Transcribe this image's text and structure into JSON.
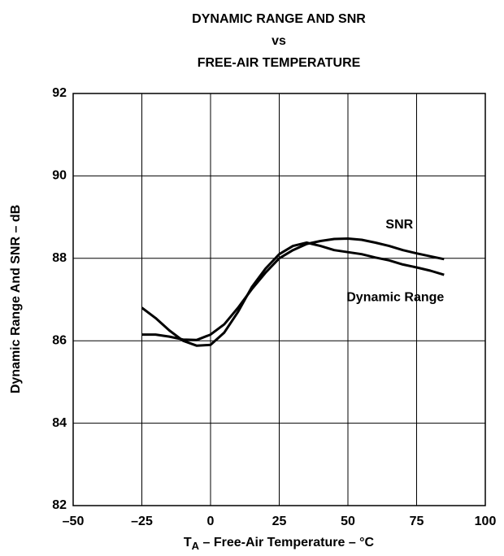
{
  "chart_data": {
    "type": "line",
    "title": [
      "DYNAMIC RANGE AND SNR",
      "vs",
      "FREE-AIR TEMPERATURE"
    ],
    "x_label": [
      "T",
      "A",
      " – Free-Air Temperature – °C"
    ],
    "y_label": "Dynamic Range And SNR – dB",
    "x": [
      -25,
      -20,
      -15,
      -10,
      -5,
      0,
      5,
      10,
      15,
      20,
      25,
      30,
      35,
      40,
      45,
      50,
      55,
      60,
      65,
      70,
      75,
      80,
      85
    ],
    "series": [
      {
        "name": "SNR",
        "color": "#000000",
        "values": [
          86.15,
          86.15,
          86.1,
          86.03,
          86.02,
          86.15,
          86.4,
          86.8,
          87.25,
          87.65,
          88.0,
          88.2,
          88.35,
          88.42,
          88.47,
          88.48,
          88.45,
          88.38,
          88.3,
          88.2,
          88.12,
          88.05,
          87.98
        ]
      },
      {
        "name": "Dynamic Range",
        "color": "#000000",
        "values": [
          86.8,
          86.55,
          86.25,
          86.0,
          85.88,
          85.9,
          86.2,
          86.7,
          87.3,
          87.75,
          88.1,
          88.3,
          88.38,
          88.3,
          88.2,
          88.15,
          88.1,
          88.02,
          87.95,
          87.85,
          87.78,
          87.7,
          87.6
        ]
      }
    ],
    "xlim": [
      -50,
      100
    ],
    "xticks": [
      {
        "value": -50,
        "label": "–50"
      },
      {
        "value": -25,
        "label": "–25"
      },
      0,
      25,
      50,
      75,
      100
    ],
    "ylim": [
      82,
      92
    ],
    "yticks": [
      82,
      84,
      86,
      88,
      90,
      92
    ],
    "grid": true
  }
}
